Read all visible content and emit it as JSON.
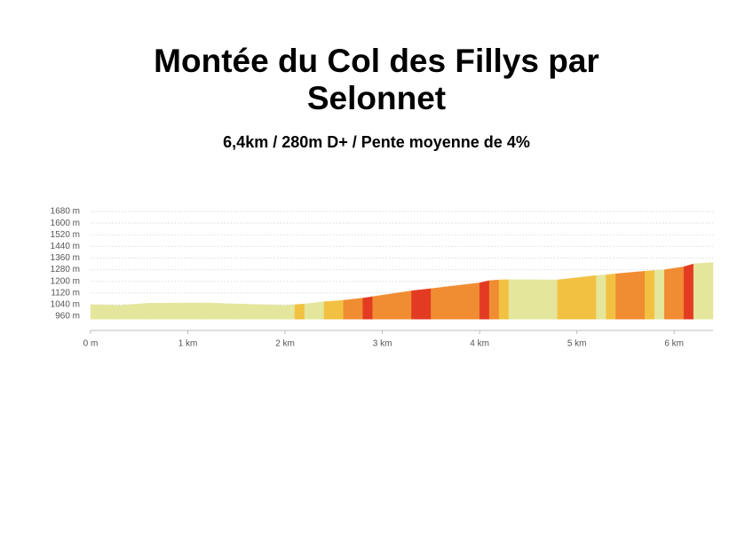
{
  "chart_data": {
    "type": "elevation-profile",
    "title": "Montée du Col des Fillys par Selonnet",
    "subtitle": "6,4km / 280m D+ / Pente moyenne de 4%",
    "x": [
      0,
      0.3,
      0.6,
      1.2,
      1.5,
      2.0,
      2.1,
      2.2,
      2.4,
      2.6,
      2.8,
      2.9,
      3.3,
      3.5,
      4.0,
      4.1,
      4.2,
      4.3,
      4.8,
      5.2,
      5.3,
      5.4,
      5.7,
      5.8,
      5.9,
      6.0,
      6.1,
      6.2,
      6.4
    ],
    "values": [
      1040,
      1035,
      1050,
      1052,
      1045,
      1035,
      1040,
      1045,
      1060,
      1070,
      1085,
      1095,
      1135,
      1150,
      1190,
      1205,
      1210,
      1212,
      1210,
      1240,
      1245,
      1252,
      1270,
      1275,
      1280,
      1290,
      1300,
      1320,
      1330
    ],
    "segment_colors": [
      "#e4e69c",
      "#e4e69c",
      "#e4e69c",
      "#e4e69c",
      "#e4e69c",
      "#e4e69c",
      "#f3c142",
      "#e4e69c",
      "#f3c142",
      "#f08c32",
      "#e33b22",
      "#f08c32",
      "#e33b22",
      "#f08c32",
      "#e33b22",
      "#f08c32",
      "#f3c142",
      "#e4e69c",
      "#f3c142",
      "#e4e69c",
      "#f3c142",
      "#f08c32",
      "#f3c142",
      "#e4e69c",
      "#f08c32",
      "#f08c32",
      "#e33b22",
      "#e4e69c"
    ],
    "xlim": [
      0,
      6.4
    ],
    "ylim": [
      940,
      1680
    ],
    "xticks": [
      {
        "value": 0,
        "label": "0 m"
      },
      {
        "value": 1,
        "label": "1 km"
      },
      {
        "value": 2,
        "label": "2 km"
      },
      {
        "value": 3,
        "label": "3 km"
      },
      {
        "value": 4,
        "label": "4 km"
      },
      {
        "value": 5,
        "label": "5 km"
      },
      {
        "value": 6,
        "label": "6 km"
      }
    ],
    "yticks": [
      {
        "value": 960,
        "label": "960 m"
      },
      {
        "value": 1040,
        "label": "1040 m"
      },
      {
        "value": 1120,
        "label": "1120 m"
      },
      {
        "value": 1200,
        "label": "1200 m"
      },
      {
        "value": 1280,
        "label": "1280 m"
      },
      {
        "value": 1360,
        "label": "1360 m"
      },
      {
        "value": 1440,
        "label": "1440 m"
      },
      {
        "value": 1520,
        "label": "1520 m"
      },
      {
        "value": 1600,
        "label": "1600 m"
      },
      {
        "value": 1680,
        "label": "1680 m"
      }
    ],
    "grid": true
  }
}
